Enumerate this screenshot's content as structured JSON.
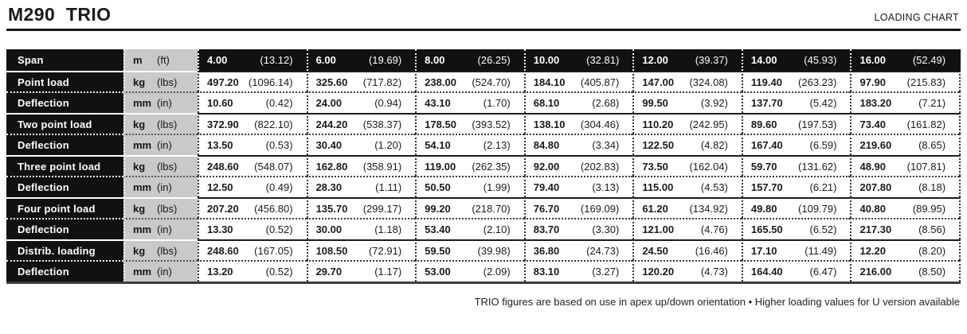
{
  "header": {
    "title": "M290 TRIO",
    "chart_label": "LOADING CHART"
  },
  "table": {
    "rows": [
      {
        "type": "header",
        "label": "Span",
        "unit": "m",
        "unit_alt": "(ft)",
        "values": [
          "4.00",
          "6.00",
          "8.00",
          "10.00",
          "12.00",
          "14.00",
          "16.00"
        ],
        "alt_values": [
          "(13.12)",
          "(19.69)",
          "(26.25)",
          "(32.81)",
          "(39.37)",
          "(45.93)",
          "(52.49)"
        ]
      },
      {
        "type": "load",
        "label": "Point load",
        "unit": "kg",
        "unit_alt": "(lbs)",
        "values": [
          "497.20",
          "325.60",
          "238.00",
          "184.10",
          "147.00",
          "119.40",
          "97.90"
        ],
        "alt_values": [
          "(1096.14)",
          "(717.82)",
          "(524.70)",
          "(405.87)",
          "(324.08)",
          "(263.23)",
          "(215.83)"
        ]
      },
      {
        "type": "deflection",
        "label": "Deflection",
        "unit": "mm",
        "unit_alt": "(in)",
        "values": [
          "10.60",
          "24.00",
          "43.10",
          "68.10",
          "99.50",
          "137.70",
          "183.20"
        ],
        "alt_values": [
          "(0.42)",
          "(0.94)",
          "(1.70)",
          "(2.68)",
          "(3.92)",
          "(5.42)",
          "(7.21)"
        ]
      },
      {
        "type": "load",
        "label": "Two point load",
        "unit": "kg",
        "unit_alt": "(lbs)",
        "values": [
          "372.90",
          "244.20",
          "178.50",
          "138.10",
          "110.20",
          "89.60",
          "73.40"
        ],
        "alt_values": [
          "(822.10)",
          "(538.37)",
          "(393.52)",
          "(304.46)",
          "(242.95)",
          "(197.53)",
          "(161.82)"
        ]
      },
      {
        "type": "deflection",
        "label": "Deflection",
        "unit": "mm",
        "unit_alt": "(in)",
        "values": [
          "13.50",
          "30.40",
          "54.10",
          "84.80",
          "122.50",
          "167.40",
          "219.60"
        ],
        "alt_values": [
          "(0.53)",
          "(1.20)",
          "(2.13)",
          "(3.34)",
          "(4.82)",
          "(6.59)",
          "(8.65)"
        ]
      },
      {
        "type": "load",
        "label": "Three point load",
        "unit": "kg",
        "unit_alt": "(lbs)",
        "values": [
          "248.60",
          "162.80",
          "119.00",
          "92.00",
          "73.50",
          "59.70",
          "48.90"
        ],
        "alt_values": [
          "(548.07)",
          "(358.91)",
          "(262.35)",
          "(202.83)",
          "(162.04)",
          "(131.62)",
          "(107.81)"
        ]
      },
      {
        "type": "deflection",
        "label": "Deflection",
        "unit": "mm",
        "unit_alt": "(in)",
        "values": [
          "12.50",
          "28.30",
          "50.50",
          "79.40",
          "115.00",
          "157.70",
          "207.80"
        ],
        "alt_values": [
          "(0.49)",
          "(1.11)",
          "(1.99)",
          "(3.13)",
          "(4.53)",
          "(6.21)",
          "(8.18)"
        ]
      },
      {
        "type": "load",
        "label": "Four point load",
        "unit": "kg",
        "unit_alt": "(lbs)",
        "values": [
          "207.20",
          "135.70",
          "99.20",
          "76.70",
          "61.20",
          "49.80",
          "40.80"
        ],
        "alt_values": [
          "(456.80)",
          "(299.17)",
          "(218.70)",
          "(169.09)",
          "(134.92)",
          "(109.79)",
          "(89.95)"
        ]
      },
      {
        "type": "deflection",
        "label": "Deflection",
        "unit": "mm",
        "unit_alt": "(in)",
        "values": [
          "13.30",
          "30.00",
          "53.40",
          "83.70",
          "121.00",
          "165.50",
          "217.30"
        ],
        "alt_values": [
          "(0.52)",
          "(1.18)",
          "(2.10)",
          "(3.30)",
          "(4.76)",
          "(6.52)",
          "(8.56)"
        ]
      },
      {
        "type": "load",
        "label": "Distrib. loading",
        "unit": "kg",
        "unit_alt": "(lbs)",
        "values": [
          "248.60",
          "108.50",
          "59.50",
          "36.80",
          "24.50",
          "17.10",
          "12.20"
        ],
        "alt_values": [
          "(167.05)",
          "(72.91)",
          "(39.98)",
          "(24.73)",
          "(16.46)",
          "(11.49)",
          "(8.20)"
        ]
      },
      {
        "type": "deflection",
        "label": "Deflection",
        "unit": "mm",
        "unit_alt": "(in)",
        "values": [
          "13.20",
          "29.70",
          "53.00",
          "83.10",
          "120.20",
          "164.40",
          "216.00"
        ],
        "alt_values": [
          "(0.52)",
          "(1.17)",
          "(2.09)",
          "(3.27)",
          "(4.73)",
          "(6.47)",
          "(8.50)"
        ]
      }
    ]
  },
  "footer": {
    "note": "TRIO figures are based on use in apex up/down orientation • Higher loading values for U version available"
  },
  "colors": {
    "label_bg": "#111111",
    "unit_bg": "#c9c9c9",
    "text": "#1a1a1a"
  }
}
